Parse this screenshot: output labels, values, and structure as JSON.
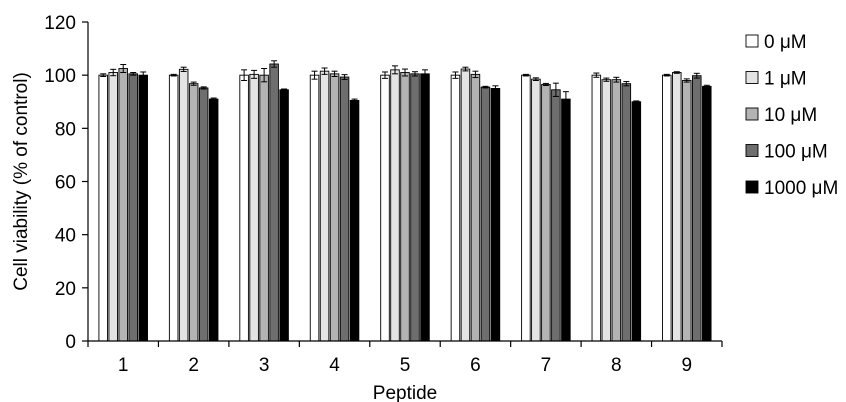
{
  "chart_data": {
    "type": "bar",
    "xlabel": "Peptide",
    "ylabel": "Cell viability (% of control)",
    "ylim": [
      0,
      120
    ],
    "yticks": [
      0,
      20,
      40,
      60,
      80,
      100,
      120
    ],
    "categories": [
      "1",
      "2",
      "3",
      "4",
      "5",
      "6",
      "7",
      "8",
      "9"
    ],
    "grid": false,
    "legend_position": "right",
    "series": [
      {
        "name": "0 μM",
        "color": "#ffffff",
        "values": [
          100,
          100,
          100,
          100,
          100,
          100,
          100,
          100,
          100
        ],
        "errors": [
          0.5,
          0.3,
          2.0,
          1.5,
          1.2,
          1.2,
          0.3,
          0.8,
          0.3
        ]
      },
      {
        "name": "1 μM",
        "color": "#e4e4e4",
        "values": [
          101,
          102.2,
          100.3,
          101.5,
          102,
          102.3,
          98.5,
          98.3,
          101
        ],
        "errors": [
          1.2,
          0.8,
          1.5,
          1.2,
          1.5,
          0.7,
          0.5,
          0.6,
          0.3
        ]
      },
      {
        "name": "10 μM",
        "color": "#b3b3b3",
        "values": [
          102.5,
          96.8,
          100,
          100.5,
          101,
          100.3,
          96.5,
          98.3,
          98
        ],
        "errors": [
          1.5,
          0.6,
          2.5,
          1.0,
          1.3,
          1.2,
          0.4,
          0.9,
          0.6
        ]
      },
      {
        "name": "100 μM",
        "color": "#6e6e6e",
        "values": [
          100.5,
          95.2,
          104.2,
          99.3,
          100.5,
          95.5,
          94.5,
          96.8,
          99.8
        ],
        "errors": [
          0.5,
          0.4,
          1.2,
          0.9,
          0.8,
          0.3,
          2.5,
          0.8,
          0.9
        ]
      },
      {
        "name": "1000 μM",
        "color": "#000000",
        "values": [
          100,
          91,
          94.5,
          90.5,
          100.5,
          95,
          91,
          90,
          95.8
        ],
        "errors": [
          1.2,
          0.4,
          0.3,
          0.5,
          1.5,
          1.0,
          2.8,
          0.3,
          0.4
        ]
      }
    ]
  }
}
